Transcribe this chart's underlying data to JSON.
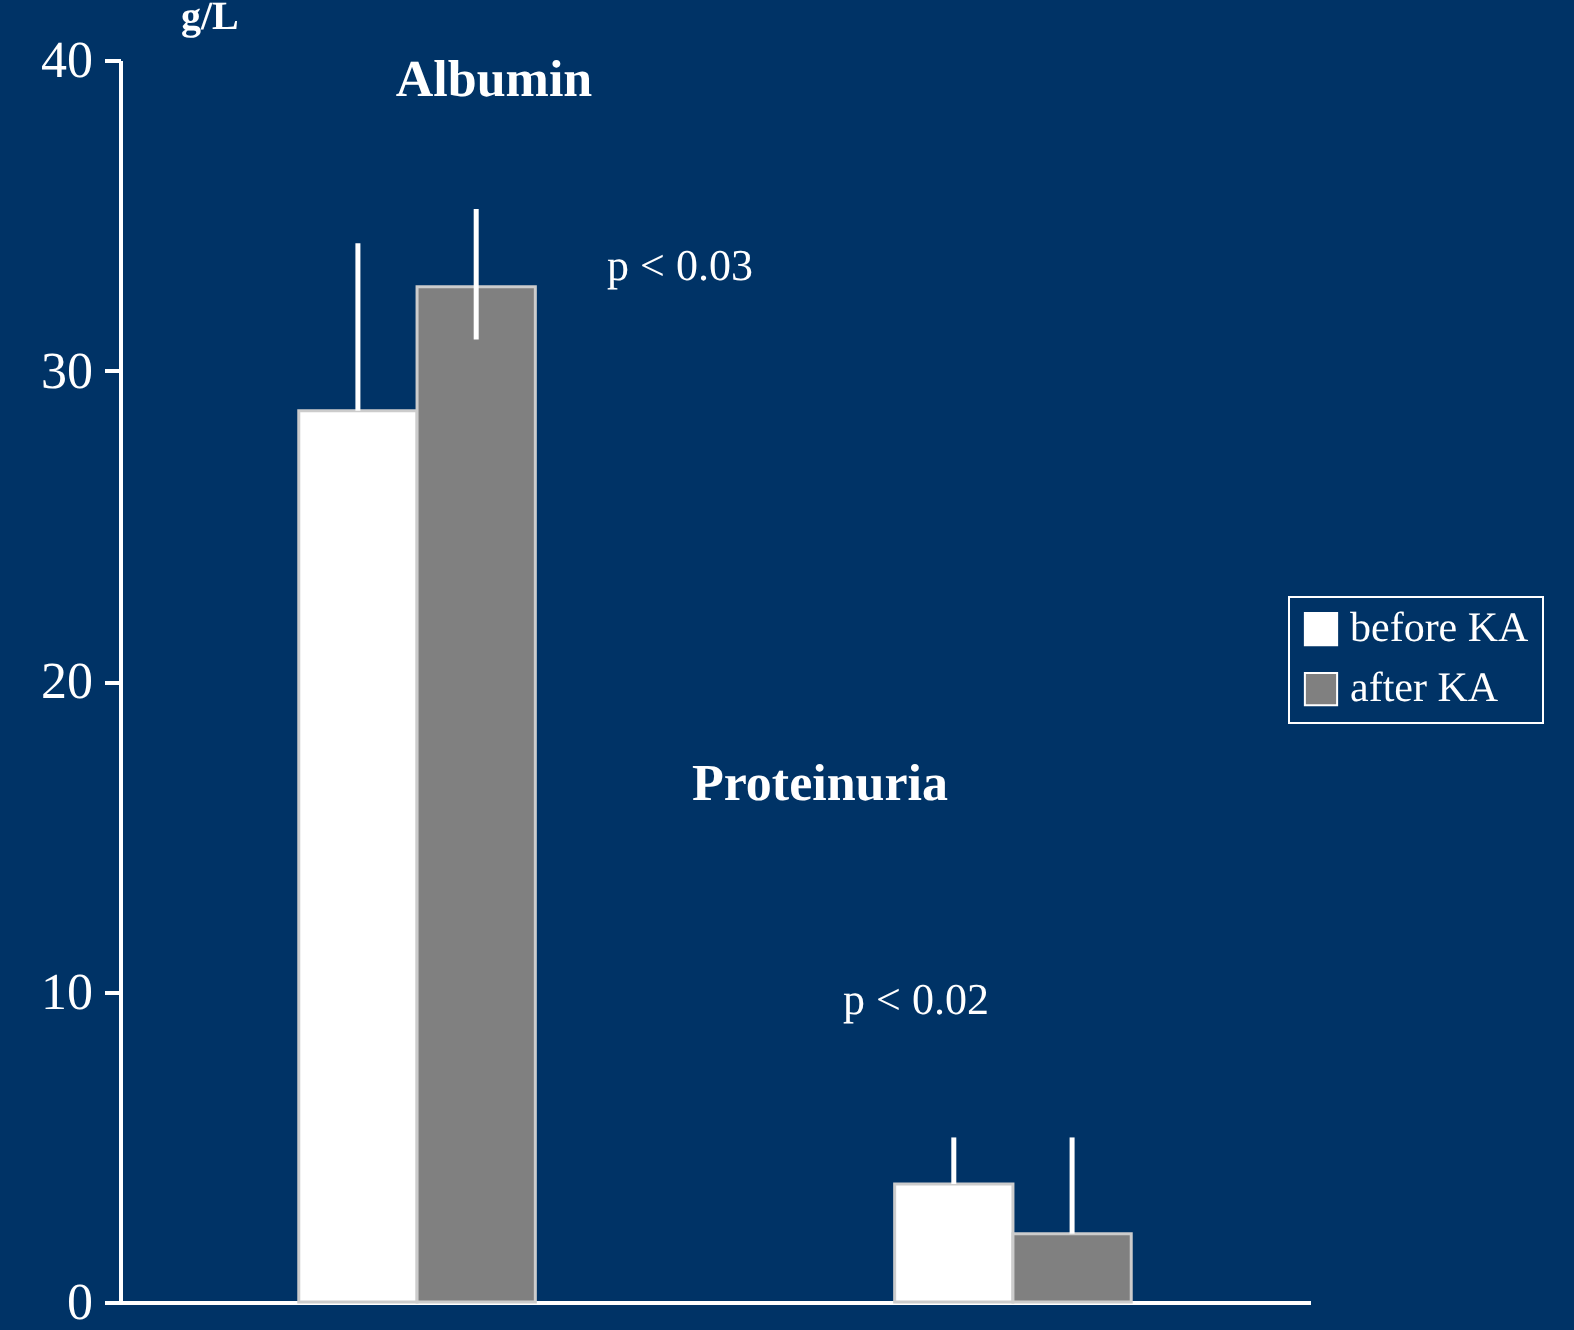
{
  "chart_data": {
    "type": "bar",
    "ylabel": "g/L",
    "categories": [
      null,
      null
    ],
    "series": [
      {
        "name": "before KA",
        "color": "#ffffff",
        "values": [
          28.7,
          3.8
        ],
        "errors": [
          [
            28.7,
            34.1
          ],
          [
            3.8,
            5.3
          ]
        ]
      },
      {
        "name": "after KA",
        "color": "#808080",
        "values": [
          32.7,
          2.2
        ],
        "errors": [
          [
            31.0,
            35.2
          ],
          [
            2.2,
            5.3
          ]
        ]
      }
    ],
    "ylim": [
      0,
      40
    ],
    "yticks": [
      0,
      10,
      20,
      30,
      40
    ],
    "grid": false,
    "legend": "right",
    "annotations": [
      "Albumin",
      "p < 0.03",
      "Proteinuria",
      "p < 0.02"
    ]
  }
}
